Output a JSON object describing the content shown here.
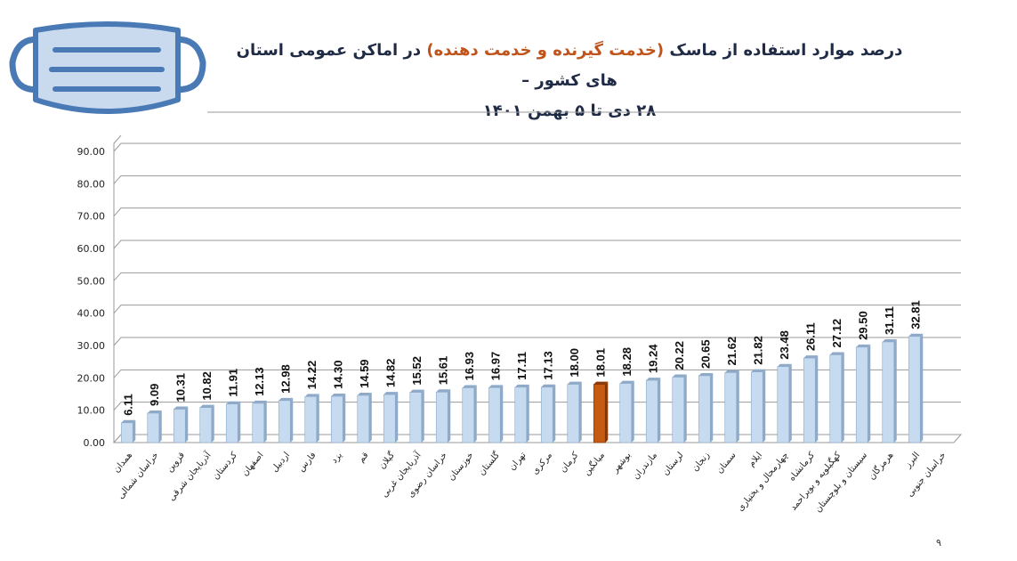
{
  "title": {
    "line1_part1": "درصد موارد استفاده از ماسک",
    "line1_accent": "(خدمت گیرنده و خدمت دهنده)",
    "line1_part2": "در اماکن عمومی استان های کشور –",
    "line2": "۲۸ دی تا ۵ بهمن ۱۴۰۱"
  },
  "page_number": "۹",
  "icons": {
    "logo": "face-mask-icon"
  },
  "colors": {
    "bar": "#c6dbf0",
    "bar_side": "#8eaac8",
    "highlight": "#c55a11",
    "highlight_side": "#8e3a06",
    "grid": "#9a9a9a",
    "title": "#1f2a44",
    "title_accent": "#c0531c"
  },
  "chart_data": {
    "type": "bar",
    "title": "درصد موارد استفاده از ماسک (خدمت گیرنده و خدمت دهنده) در اماکن عمومی استان های کشور – ۲۸ دی تا ۵ بهمن ۱۴۰۱",
    "categories": [
      "همدان",
      "خراسان شمالی",
      "قزوین",
      "آذربایجان شرقی",
      "کردستان",
      "اصفهان",
      "اردبیل",
      "فارس",
      "یزد",
      "قم",
      "گیلان",
      "آذربایجان غربی",
      "خراسان رضوی",
      "خوزستان",
      "گلستان",
      "تهران",
      "مرکزی",
      "کرمان",
      "میانگین",
      "بوشهر",
      "مازندران",
      "لرستان",
      "زنجان",
      "سمنان",
      "ایلام",
      "چهارمحال و بختیاری",
      "کرمانشاه",
      "کهگیلویه و بویراحمد",
      "سیستان و بلوچستان",
      "هرمزگان",
      "البرز",
      "خراسان جنوبی"
    ],
    "values": [
      6.11,
      9.09,
      10.31,
      10.82,
      11.91,
      12.13,
      12.98,
      14.22,
      14.3,
      14.59,
      14.82,
      15.52,
      15.61,
      16.93,
      16.97,
      17.11,
      17.13,
      18.0,
      18.01,
      18.28,
      19.24,
      20.22,
      20.65,
      21.62,
      21.82,
      23.48,
      26.11,
      27.12,
      29.5,
      31.11,
      32.81,
      null
    ],
    "value_labels": [
      "6.11",
      "9.09",
      "10.31",
      "10.82",
      "11.91",
      "12.13",
      "12.98",
      "14.22",
      "14.30",
      "14.59",
      "14.82",
      "15.52",
      "15.61",
      "16.93",
      "16.97",
      "17.11",
      "17.13",
      "18.00",
      "18.01",
      "18.28",
      "19.24",
      "20.22",
      "20.65",
      "21.62",
      "21.82",
      "23.48",
      "26.11",
      "27.12",
      "29.50",
      "31.11",
      "32.81",
      ""
    ],
    "highlight_category": "میانگین",
    "ylim": [
      0,
      90
    ],
    "yticks": [
      "0.00",
      "10.00",
      "20.00",
      "30.00",
      "40.00",
      "50.00",
      "60.00",
      "70.00",
      "80.00",
      "90.00"
    ],
    "grid": true,
    "legend": "none",
    "xlabel": "",
    "ylabel": ""
  }
}
